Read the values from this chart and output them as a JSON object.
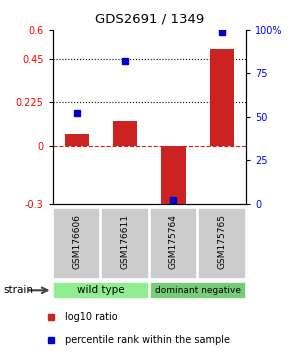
{
  "title": "GDS2691 / 1349",
  "samples": [
    "GSM176606",
    "GSM176611",
    "GSM175764",
    "GSM175765"
  ],
  "log10_ratio": [
    0.06,
    0.13,
    -0.32,
    0.5
  ],
  "percentile_rank": [
    52,
    82,
    2,
    99
  ],
  "groups": [
    {
      "label": "wild type",
      "samples": [
        0,
        1
      ],
      "color": "#90EE90"
    },
    {
      "label": "dominant negative",
      "samples": [
        2,
        3
      ],
      "color": "#77CC77"
    }
  ],
  "bar_color": "#CC2222",
  "dot_color": "#0000CC",
  "ylim_left": [
    -0.3,
    0.6
  ],
  "ylim_right": [
    0,
    100
  ],
  "yticks_left": [
    -0.3,
    0,
    0.225,
    0.45,
    0.6
  ],
  "ytick_labels_left": [
    "-0.3",
    "0",
    "0.225",
    "0.45",
    "0.6"
  ],
  "yticks_right": [
    0,
    25,
    50,
    75,
    100
  ],
  "ytick_labels_right": [
    "0",
    "25",
    "50",
    "75",
    "100%"
  ],
  "hlines": [
    0.225,
    0.45
  ],
  "bar_width": 0.5,
  "background_color": "#ffffff",
  "plot_bg": "#ffffff",
  "strain_label": "strain",
  "sample_box_color": "#CCCCCC",
  "legend_items": [
    {
      "label": "log10 ratio",
      "color": "#CC2222"
    },
    {
      "label": "percentile rank within the sample",
      "color": "#0000CC"
    }
  ]
}
